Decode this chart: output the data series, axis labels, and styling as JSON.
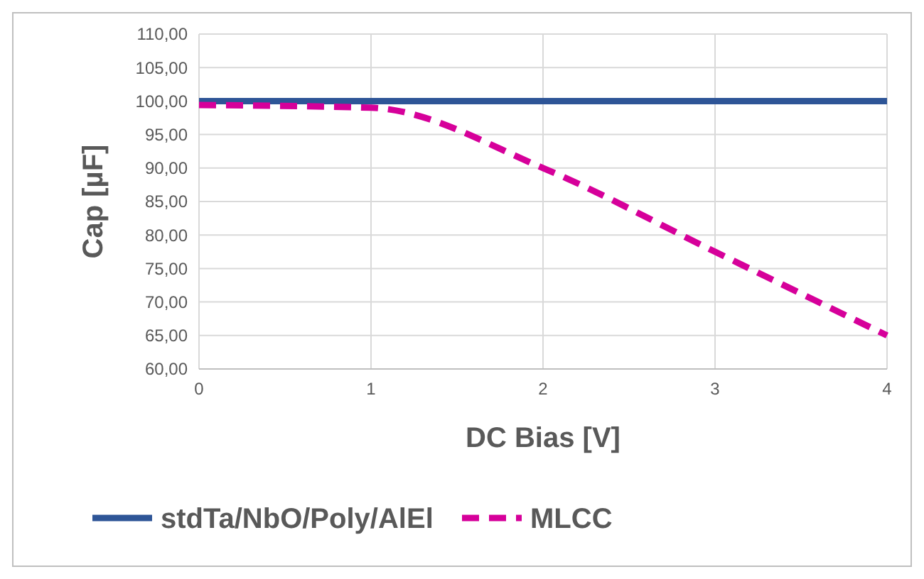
{
  "chart_data": {
    "type": "line",
    "xlabel": "DC Bias [V]",
    "ylabel": "Cap  [µF]",
    "x": [
      0,
      1,
      2,
      3,
      4
    ],
    "series": [
      {
        "name": "stdTa/NbO/Poly/AlEl",
        "color": "#2e5597",
        "values": [
          100,
          100,
          100,
          100,
          100
        ],
        "line_style": "solid"
      },
      {
        "name": "MLCC",
        "color": "#d6009a",
        "values": [
          99.4,
          99,
          90,
          77.5,
          65
        ],
        "line_style": "dashed"
      }
    ],
    "xlim": [
      0,
      4
    ],
    "xticks": [
      0,
      1,
      2,
      3,
      4
    ],
    "ylim": [
      60,
      110
    ],
    "yticks": [
      {
        "value": 60,
        "label": "60,00"
      },
      {
        "value": 65,
        "label": "65,00"
      },
      {
        "value": 70,
        "label": "70,00"
      },
      {
        "value": 75,
        "label": "75,00"
      },
      {
        "value": 80,
        "label": "80,00"
      },
      {
        "value": 85,
        "label": "85,00"
      },
      {
        "value": 90,
        "label": "90,00"
      },
      {
        "value": 95,
        "label": "95,00"
      },
      {
        "value": 100,
        "label": "100,00"
      },
      {
        "value": 105,
        "label": "105,00"
      },
      {
        "value": 110,
        "label": "110,00"
      }
    ],
    "grid": true,
    "legend": "bottom",
    "marker": "none"
  }
}
